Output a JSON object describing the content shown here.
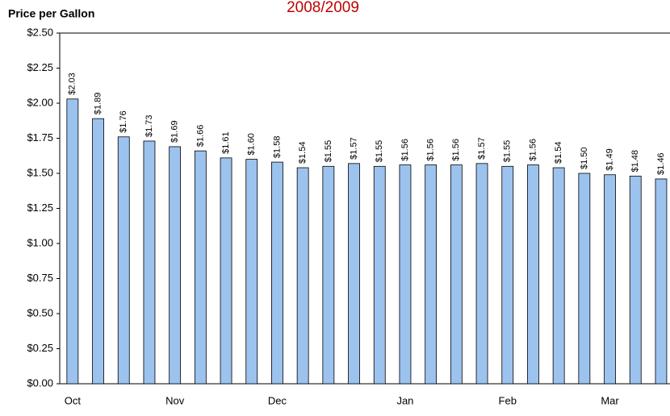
{
  "chart_data": {
    "type": "bar",
    "title": "2008/2009",
    "y_axis_label": "Price per Gallon",
    "categories": [
      "Oct",
      null,
      null,
      null,
      "Nov",
      null,
      null,
      null,
      "Dec",
      null,
      null,
      null,
      null,
      "Jan",
      null,
      null,
      null,
      "Feb",
      null,
      null,
      null,
      "Mar",
      null,
      null
    ],
    "values": [
      2.03,
      1.89,
      1.76,
      1.73,
      1.69,
      1.66,
      1.61,
      1.6,
      1.58,
      1.54,
      1.55,
      1.57,
      1.55,
      1.56,
      1.56,
      1.56,
      1.57,
      1.55,
      1.56,
      1.54,
      1.5,
      1.49,
      1.48,
      1.46
    ],
    "value_labels": [
      "$2.03",
      "$1.89",
      "$1.76",
      "$1.73",
      "$1.69",
      "$1.66",
      "$1.61",
      "$1.60",
      "$1.58",
      "$1.54",
      "$1.55",
      "$1.57",
      "$1.55",
      "$1.56",
      "$1.56",
      "$1.56",
      "$1.57",
      "$1.55",
      "$1.56",
      "$1.54",
      "$1.50",
      "$1.49",
      "$1.48",
      "$1.46"
    ],
    "color": "#9cc3ee",
    "ylim": [
      0,
      2.5
    ],
    "yticks": [
      {
        "value": 0,
        "label": "$0.00"
      },
      {
        "value": 0.25,
        "label": "$0.25"
      },
      {
        "value": 0.5,
        "label": "$0.50"
      },
      {
        "value": 0.75,
        "label": "$0.75"
      },
      {
        "value": 1,
        "label": "$1.00"
      },
      {
        "value": 1.25,
        "label": "$1.25"
      },
      {
        "value": 1.5,
        "label": "$1.50"
      },
      {
        "value": 1.75,
        "label": "$1.75"
      },
      {
        "value": 2,
        "label": "$2.00"
      },
      {
        "value": 2.25,
        "label": "$2.25"
      },
      {
        "value": 2.5,
        "label": "$2.50"
      }
    ],
    "grid": false
  }
}
